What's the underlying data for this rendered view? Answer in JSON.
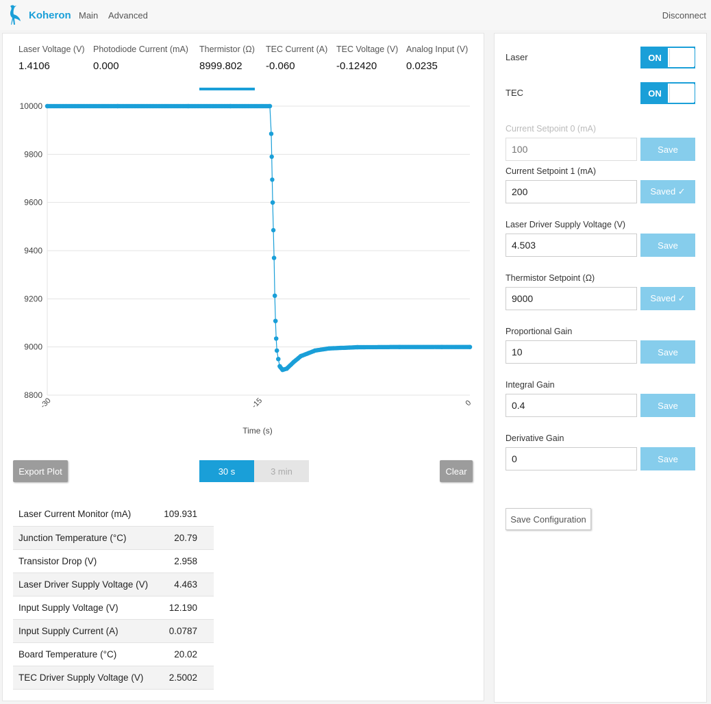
{
  "header": {
    "brand": "Koheron",
    "nav": [
      "Main",
      "Advanced"
    ],
    "disconnect": "Disconnect"
  },
  "readings": [
    {
      "label": "Laser Voltage (V)",
      "value": "1.4106"
    },
    {
      "label": "Photodiode Current (mA)",
      "value": "0.000"
    },
    {
      "label": "Thermistor (Ω)",
      "value": "8999.802",
      "selected": true
    },
    {
      "label": "TEC Current (A)",
      "value": "-0.060"
    },
    {
      "label": "TEC Voltage (V)",
      "value": "-0.12420"
    },
    {
      "label": "Analog Input (V)",
      "value": "0.0235"
    }
  ],
  "chart_data": {
    "type": "scatter",
    "title": "",
    "xlabel": "Time (s)",
    "ylabel": "",
    "xlim": [
      -30,
      0
    ],
    "ylim": [
      8800,
      10000
    ],
    "x_ticks": [
      "-30",
      "-15",
      "0"
    ],
    "y_ticks": [
      "10000",
      "9800",
      "9600",
      "9400",
      "9200",
      "9000",
      "8800"
    ],
    "grid": true,
    "legend": "none",
    "color": "#1a9fd8",
    "series": [
      {
        "x": [
          -30,
          -25,
          -20,
          -17,
          -14.2,
          -14.1,
          -14.0,
          -13.9,
          -13.85,
          -13.8,
          -13.75,
          -13.7,
          -13.6,
          -13.5,
          -13.3,
          -13.0,
          -12.5,
          -12.0,
          -11.0,
          -10.0,
          -8.0,
          -5.0,
          -2.0,
          0
        ],
        "y": [
          10000,
          10000,
          10000,
          10000,
          10000,
          9885,
          9600,
          9370,
          9213,
          9108,
          9035,
          8985,
          8950,
          8920,
          8905,
          8910,
          8938,
          8962,
          8985,
          8994,
          8999,
          9000,
          9000,
          9000
        ]
      }
    ]
  },
  "buttons": {
    "export": "Export Plot",
    "range_30s": "30 s",
    "range_3min": "3 min",
    "clear": "Clear"
  },
  "monitor": [
    {
      "label": "Laser Current Monitor (mA)",
      "value": "109.931"
    },
    {
      "label": "Junction Temperature (°C)",
      "value": "20.79"
    },
    {
      "label": "Transistor Drop (V)",
      "value": "2.958"
    },
    {
      "label": "Laser Driver Supply Voltage (V)",
      "value": "4.463"
    },
    {
      "label": "Input Supply Voltage (V)",
      "value": "12.190"
    },
    {
      "label": "Input Supply Current (A)",
      "value": "0.0787"
    },
    {
      "label": "Board Temperature (°C)",
      "value": "20.02"
    },
    {
      "label": "TEC Driver Supply Voltage (V)",
      "value": "2.5002"
    }
  ],
  "controls": {
    "laser": {
      "label": "Laser",
      "state": "ON"
    },
    "tec": {
      "label": "TEC",
      "state": "ON"
    },
    "fields": [
      {
        "label": "Current Setpoint 0 (mA)",
        "value": "",
        "placeholder": "100",
        "button": "Save",
        "disabled": true
      },
      {
        "label": "Current Setpoint 1 (mA)",
        "value": "200",
        "button": "Saved ✓"
      },
      {
        "label": "Laser Driver Supply Voltage (V)",
        "value": "4.503",
        "button": "Save"
      },
      {
        "label": "Thermistor Setpoint (Ω)",
        "value": "9000",
        "button": "Saved ✓"
      },
      {
        "label": "Proportional Gain",
        "value": "10",
        "button": "Save"
      },
      {
        "label": "Integral Gain",
        "value": "0.4",
        "button": "Save"
      },
      {
        "label": "Derivative Gain",
        "value": "0",
        "button": "Save"
      }
    ],
    "save_config": "Save Configuration"
  },
  "colors": {
    "accent": "#1a9fd8",
    "save_button": "#86cdec",
    "gray_button": "#9c9c9c"
  }
}
